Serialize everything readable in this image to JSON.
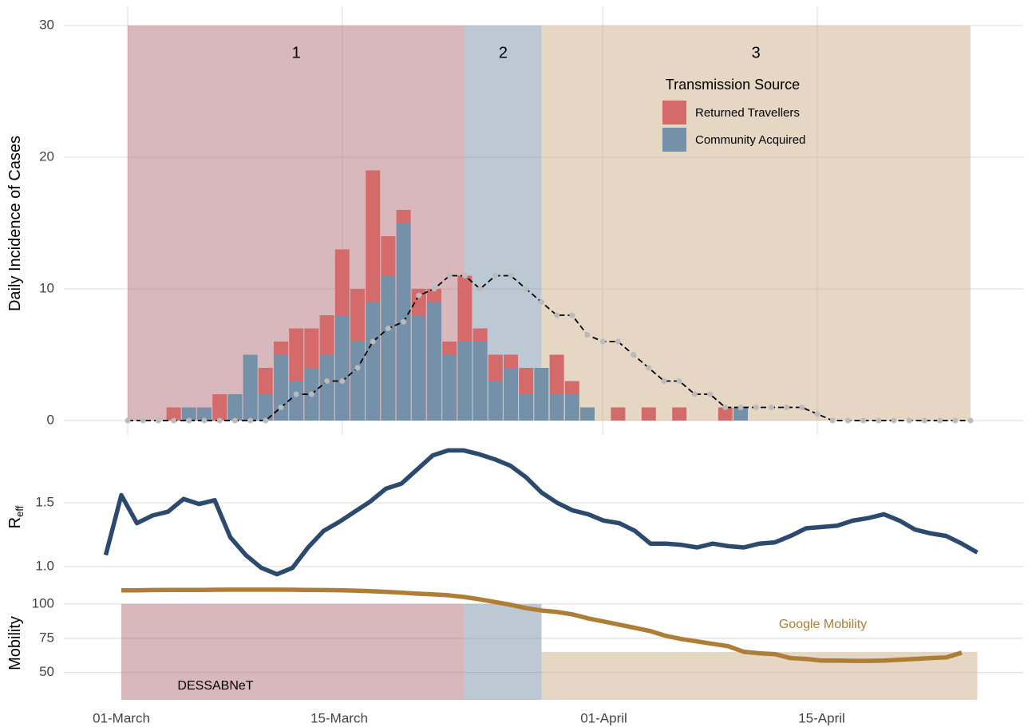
{
  "chart_data": [
    {
      "type": "bar",
      "stacked": true,
      "ylabel": "Daily Incidence of Cases",
      "legend_title": "Transmission Source",
      "x": [
        0,
        1,
        2,
        3,
        4,
        5,
        6,
        7,
        8,
        9,
        10,
        11,
        12,
        13,
        14,
        15,
        16,
        17,
        18,
        19,
        20,
        21,
        22,
        23,
        24,
        25,
        26,
        27,
        28,
        29,
        30,
        31,
        32,
        33,
        34,
        35,
        36,
        37,
        38,
        39,
        40,
        41,
        42,
        43,
        44,
        45,
        46,
        47,
        48,
        49,
        50,
        51,
        52,
        53,
        54,
        55
      ],
      "series": [
        {
          "name": "Community Acquired",
          "color": "#7590a9",
          "values": [
            0,
            0,
            0,
            0,
            1,
            1,
            0,
            2,
            5,
            2,
            5,
            3,
            4,
            5,
            8,
            6,
            9,
            11,
            15,
            8,
            9,
            5,
            6,
            6,
            3,
            4,
            2,
            4,
            2,
            2,
            1,
            0,
            0,
            0,
            0,
            0,
            0,
            0,
            0,
            0,
            1,
            0,
            0,
            0,
            0,
            0,
            0,
            0,
            0,
            0,
            0,
            0,
            0,
            0,
            0,
            0
          ]
        },
        {
          "name": "Returned Travellers",
          "color": "#d46a6a",
          "values": [
            0,
            0,
            0,
            1,
            0,
            0,
            2,
            0,
            0,
            2,
            1,
            4,
            3,
            3,
            5,
            4,
            10,
            3,
            1,
            2,
            1,
            1,
            5,
            1,
            2,
            1,
            2,
            0,
            3,
            1,
            0,
            0,
            1,
            0,
            1,
            0,
            1,
            0,
            0,
            1,
            0,
            0,
            0,
            0,
            0,
            0,
            0,
            0,
            0,
            0,
            0,
            0,
            0,
            0,
            0,
            0
          ]
        }
      ],
      "trend": {
        "color": "#000000",
        "marker_color": "#bbbbbb",
        "values": [
          0,
          0,
          0,
          0,
          0,
          0,
          0,
          0,
          0,
          0,
          1,
          2,
          2,
          3,
          3,
          4,
          6,
          7,
          7.5,
          9.5,
          10,
          11,
          11,
          10,
          11,
          11,
          10,
          9,
          8,
          8,
          6.5,
          6,
          6,
          5,
          4,
          3,
          3,
          2,
          2,
          1,
          1,
          1,
          1,
          1,
          1,
          0.5,
          0,
          0,
          0,
          0,
          0,
          0,
          0,
          0,
          0,
          0
        ]
      },
      "bands": [
        {
          "label": "1",
          "start": 0,
          "end": 22,
          "color": "#b3717b"
        },
        {
          "label": "2",
          "start": 22,
          "end": 27,
          "color": "#7991a9"
        },
        {
          "label": "3",
          "start": 27,
          "end": 55,
          "color": "#cdad89"
        }
      ],
      "xlim": [
        -1,
        55
      ],
      "xticks": [
        0,
        14,
        31,
        45
      ],
      "ylim": [
        -1,
        31
      ],
      "yticks": [
        0,
        10,
        20,
        30
      ],
      "grid": true
    },
    {
      "type": "line",
      "ylabel": "R",
      "ylabel_sub": "eff",
      "x": [
        -1,
        0,
        1,
        2,
        3,
        4,
        5,
        6,
        7,
        8,
        9,
        10,
        11,
        12,
        13,
        14,
        15,
        16,
        17,
        18,
        19,
        20,
        21,
        22,
        23,
        24,
        25,
        26,
        27,
        28,
        29,
        30,
        31,
        32,
        33,
        34,
        35,
        36,
        37,
        38,
        39,
        40,
        41,
        42,
        43,
        44,
        45,
        46,
        47,
        48,
        49,
        50,
        51,
        52,
        53,
        54,
        55
      ],
      "series": [
        {
          "color": "#2c4a6e",
          "values": [
            1.09,
            1.56,
            1.34,
            1.4,
            1.43,
            1.53,
            1.49,
            1.52,
            1.23,
            1.09,
            0.99,
            0.94,
            0.99,
            1.15,
            1.28,
            1.35,
            1.43,
            1.51,
            1.61,
            1.65,
            1.76,
            1.87,
            1.91,
            1.91,
            1.88,
            1.84,
            1.79,
            1.7,
            1.58,
            1.5,
            1.44,
            1.41,
            1.36,
            1.34,
            1.28,
            1.18,
            1.18,
            1.17,
            1.15,
            1.18,
            1.16,
            1.15,
            1.18,
            1.19,
            1.24,
            1.3,
            1.31,
            1.32,
            1.36,
            1.38,
            1.41,
            1.36,
            1.29,
            1.26,
            1.24,
            1.18,
            1.11
          ]
        }
      ],
      "xlim": [
        -1,
        55
      ],
      "ylim": [
        0.9,
        1.95
      ],
      "yticks": [
        {
          "value": 1,
          "label": "1.0"
        },
        1.5
      ],
      "grid": true
    },
    {
      "type": "line",
      "ylabel": "Mobility",
      "band_label": "DESSABNeT",
      "x": [
        0,
        1,
        2,
        3,
        4,
        5,
        6,
        7,
        8,
        9,
        10,
        11,
        12,
        13,
        14,
        15,
        16,
        17,
        18,
        19,
        20,
        21,
        22,
        23,
        24,
        25,
        26,
        27,
        28,
        29,
        30,
        31,
        32,
        33,
        34,
        35,
        36,
        37,
        38,
        39,
        40,
        41,
        42,
        43,
        44,
        45,
        46,
        47,
        48,
        49,
        50,
        51,
        52,
        53,
        54
      ],
      "series": [
        {
          "name": "Google Mobility",
          "color": "#ae7e36",
          "values": [
            110,
            110,
            110.2,
            110.3,
            110.3,
            110.3,
            110.4,
            110.5,
            110.5,
            110.5,
            110.5,
            110.4,
            110.3,
            110.2,
            110.1,
            109.8,
            109.4,
            108.9,
            108.3,
            107.6,
            107.1,
            106.4,
            105.2,
            103.5,
            101.5,
            99.5,
            97,
            95.3,
            94.2,
            92.4,
            89.5,
            87.2,
            84.9,
            82.6,
            80.2,
            76.7,
            74.4,
            72.7,
            70.9,
            69.2,
            65.1,
            64,
            63.4,
            60.5,
            59.9,
            58.7,
            58.7,
            58.5,
            58.5,
            58.7,
            59.3,
            59.9,
            60.5,
            61,
            64.5
          ]
        }
      ],
      "bands": [
        {
          "start": 0,
          "end": 22,
          "top": 100,
          "color": "#b3717b"
        },
        {
          "start": 22,
          "end": 27,
          "top": 100,
          "color": "#7991a9"
        },
        {
          "start": 27,
          "end": 55,
          "top": 65,
          "color": "#cdad89"
        }
      ],
      "xlim": [
        -1,
        55
      ],
      "xticks": [
        {
          "value": 0,
          "label": "01-March"
        },
        {
          "value": 14,
          "label": "15-March"
        },
        {
          "value": 31,
          "label": "01-April"
        },
        {
          "value": 45,
          "label": "15-April"
        }
      ],
      "ylim": [
        30,
        113
      ],
      "yticks": [
        50,
        75,
        100
      ],
      "grid": true
    }
  ]
}
